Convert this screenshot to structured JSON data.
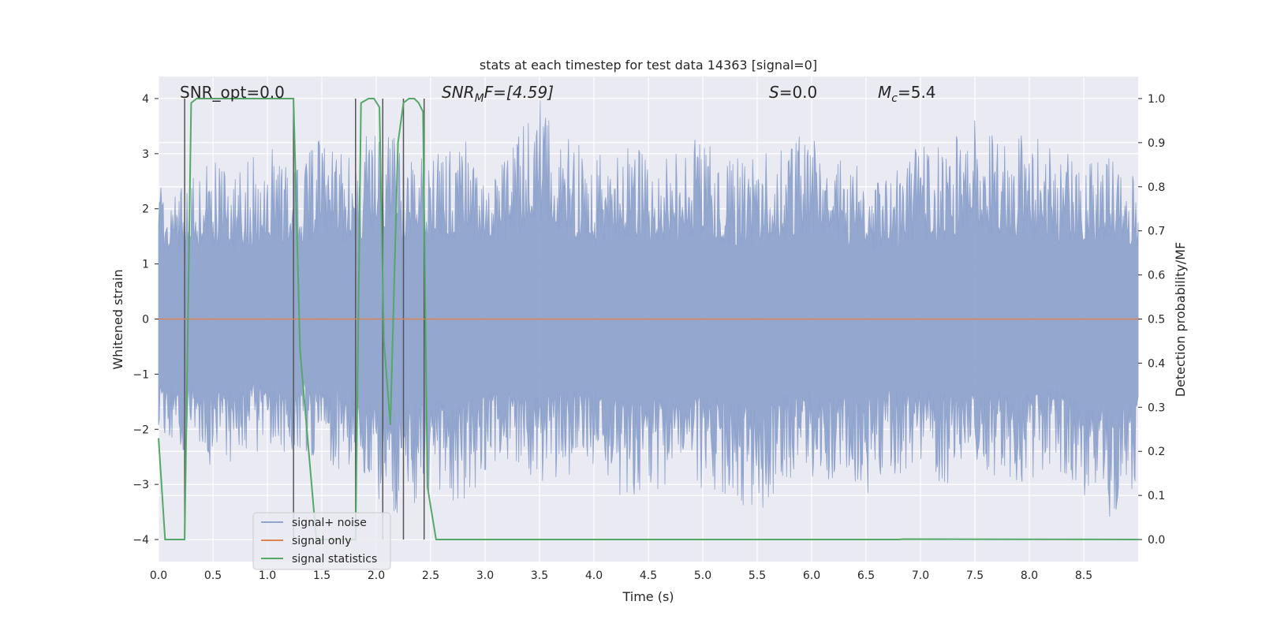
{
  "chart_data": {
    "type": "line",
    "title": "stats at each timestep for test data 14363 [signal=0]",
    "xlabel": "Time (s)",
    "ylabel": "Whitened strain",
    "y2label": "Detection probability/MF",
    "xlim": [
      0.0,
      9.0
    ],
    "ylim": [
      -4.4,
      4.4
    ],
    "y2lim": [
      -0.05,
      1.05
    ],
    "grid": true,
    "legend_position": "lower-left",
    "xticks": [
      0.0,
      0.5,
      1.0,
      1.5,
      2.0,
      2.5,
      3.0,
      3.5,
      4.0,
      4.5,
      5.0,
      5.5,
      6.0,
      6.5,
      7.0,
      7.5,
      8.0,
      8.5
    ],
    "xtick_labels": [
      "0.0",
      "0.5",
      "1.0",
      "1.5",
      "2.0",
      "2.5",
      "3.0",
      "3.5",
      "4.0",
      "4.5",
      "5.0",
      "5.5",
      "6.0",
      "6.5",
      "7.0",
      "7.5",
      "8.0",
      "8.5"
    ],
    "yticks": [
      4,
      3,
      2,
      1,
      0,
      -1,
      -2,
      -3,
      -4
    ],
    "ytick_labels": [
      "4",
      "3",
      "2",
      "1",
      "0",
      "−1",
      "−2",
      "−3",
      "−4"
    ],
    "y2ticks": [
      1.0,
      0.9,
      0.8,
      0.7,
      0.6,
      0.5,
      0.4,
      0.3,
      0.2,
      0.1,
      0.0
    ],
    "y2tick_labels": [
      "1.0",
      "0.9",
      "0.8",
      "0.7",
      "0.6",
      "0.5",
      "0.4",
      "0.3",
      "0.2",
      "0.1",
      "0.0"
    ],
    "noise_envelope": {
      "description_free": true,
      "times": [
        0.0,
        0.25,
        0.5,
        0.75,
        1.0,
        1.25,
        1.5,
        1.75,
        2.0,
        2.25,
        2.5,
        2.75,
        3.0,
        3.25,
        3.5,
        3.75,
        4.0,
        4.25,
        4.5,
        4.75,
        5.0,
        5.25,
        5.5,
        5.75,
        6.0,
        6.25,
        6.5,
        6.75,
        7.0,
        7.25,
        7.5,
        7.75,
        8.0,
        8.25,
        8.5,
        8.75,
        9.0
      ],
      "upper": [
        2.4,
        2.6,
        2.9,
        2.7,
        3.3,
        2.8,
        3.3,
        3.0,
        3.5,
        3.2,
        3.0,
        3.3,
        3.1,
        3.2,
        4.0,
        3.3,
        3.0,
        3.2,
        3.1,
        3.0,
        3.4,
        2.9,
        3.0,
        3.1,
        3.5,
        3.2,
        2.6,
        2.7,
        3.2,
        3.1,
        3.8,
        3.2,
        3.4,
        3.0,
        3.1,
        3.2,
        2.9
      ],
      "lower": [
        -2.2,
        -2.4,
        -2.9,
        -2.6,
        -2.3,
        -2.5,
        -2.6,
        -2.8,
        -3.4,
        -3.6,
        -3.2,
        -3.5,
        -2.9,
        -2.8,
        -3.0,
        -2.9,
        -2.7,
        -3.3,
        -3.1,
        -3.2,
        -3.1,
        -3.2,
        -3.6,
        -2.9,
        -3.0,
        -3.0,
        -3.2,
        -2.8,
        -2.9,
        -3.0,
        -2.8,
        -2.9,
        -3.0,
        -2.7,
        -3.3,
        -3.6,
        -3.1
      ]
    },
    "series": [
      {
        "name": "signal+ noise",
        "color": "#8fa3cc",
        "axis": "left"
      },
      {
        "name": "signal only",
        "color": "#dd8452",
        "axis": "left",
        "x": [
          0.0,
          9.0
        ],
        "y": [
          0.0,
          0.0
        ]
      },
      {
        "name": "signal statistics",
        "color": "#55a868",
        "axis": "right",
        "x": [
          0.0,
          0.06,
          0.24,
          0.3,
          0.35,
          0.5,
          1.0,
          1.24,
          1.3,
          1.38,
          1.45,
          1.81,
          1.86,
          1.93,
          1.98,
          2.03,
          2.07,
          2.13,
          2.2,
          2.25,
          2.3,
          2.35,
          2.39,
          2.43,
          2.47,
          2.55,
          2.6,
          6.8,
          6.85,
          9.0
        ],
        "y": [
          0.23,
          0.0,
          0.0,
          0.99,
          1.0,
          1.0,
          1.0,
          1.0,
          0.43,
          0.2,
          0.0,
          0.0,
          0.99,
          1.0,
          1.0,
          0.98,
          0.45,
          0.26,
          0.9,
          0.99,
          1.0,
          1.0,
          0.99,
          0.97,
          0.12,
          0.0,
          0.0,
          0.0,
          0.001,
          0.0
        ]
      }
    ],
    "vertical_markers": [
      0.24,
      1.24,
      1.81,
      2.06,
      2.25,
      2.44
    ],
    "annotations": {
      "snr_opt": "SNR_opt=0.0",
      "snr_mf_prefix": "SNR",
      "snr_mf_sub": "M",
      "snr_mf_suffix": "F=[4.59]",
      "s_label": "S",
      "s_value": "=0.0",
      "mc_label": "M",
      "mc_sub": "c",
      "mc_value": "=5.4"
    },
    "colors": {
      "plot_bg": "#eaeaf2",
      "grid": "#ffffff",
      "markers": "#555555"
    }
  }
}
